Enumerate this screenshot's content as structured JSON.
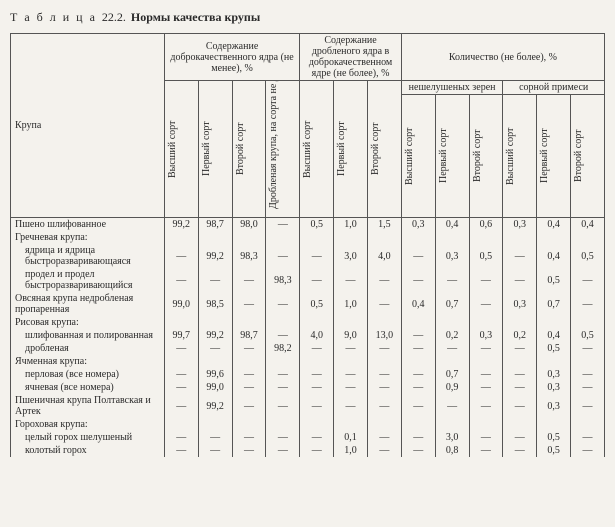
{
  "title_word": "Т а б л и ц а",
  "title_num": "22.2.",
  "title_text": "Нормы качества крупы",
  "headers": {
    "krupa": "Крупа",
    "g1": "Содержание доброкачественного ядра (не менее), %",
    "g2": "Содержание дробленого ядра в доброкачественном ядре (не более), %",
    "g3": "Количество (не более), %",
    "g3a": "нешелушеных зерен",
    "g3b": "сорной примеси",
    "c_high": "Высший сорт",
    "c_first": "Первый сорт",
    "c_second": "Второй сорт",
    "c_drobl": "Дробленая крупа, на сорта не делящаяся"
  },
  "rows": [
    {
      "label": "Пшено шлифованное",
      "indent": 0,
      "v": [
        "99,2",
        "98,7",
        "98,0",
        "—",
        "0,5",
        "1,0",
        "1,5",
        "0,3",
        "0,4",
        "0,6",
        "0,3",
        "0,4",
        "0,4"
      ]
    },
    {
      "label": "Гречневая крупа:",
      "indent": 0,
      "v": [
        "",
        "",
        "",
        "",
        "",
        "",
        "",
        "",
        "",
        "",
        "",
        "",
        ""
      ]
    },
    {
      "label": "ядрица и ядрица быстроразваривающаяся",
      "indent": 1,
      "v": [
        "—",
        "99,2",
        "98,3",
        "—",
        "—",
        "3,0",
        "4,0",
        "—",
        "0,3",
        "0,5",
        "—",
        "0,4",
        "0,5"
      ]
    },
    {
      "label": "продел и продел быстроразваривающийся",
      "indent": 1,
      "v": [
        "—",
        "—",
        "—",
        "98,3",
        "—",
        "—",
        "—",
        "—",
        "—",
        "—",
        "—",
        "0,5",
        "—"
      ]
    },
    {
      "label": "Овсяная крупа недробленая пропаренная",
      "indent": 0,
      "v": [
        "99,0",
        "98,5",
        "—",
        "—",
        "0,5",
        "1,0",
        "—",
        "0,4",
        "0,7",
        "—",
        "0,3",
        "0,7",
        "—"
      ]
    },
    {
      "label": "Рисовая крупа:",
      "indent": 0,
      "v": [
        "",
        "",
        "",
        "",
        "",
        "",
        "",
        "",
        "",
        "",
        "",
        "",
        ""
      ]
    },
    {
      "label": "шлифованная и полированная",
      "indent": 1,
      "v": [
        "99,7",
        "99,2",
        "98,7",
        "—",
        "4,0",
        "9,0",
        "13,0",
        "—",
        "0,2",
        "0,3",
        "0,2",
        "0,4",
        "0,5"
      ]
    },
    {
      "label": "дробленая",
      "indent": 1,
      "v": [
        "—",
        "—",
        "—",
        "98,2",
        "—",
        "—",
        "—",
        "—",
        "—",
        "—",
        "—",
        "0,5",
        "—"
      ]
    },
    {
      "label": "Ячменная крупа:",
      "indent": 0,
      "v": [
        "",
        "",
        "",
        "",
        "",
        "",
        "",
        "",
        "",
        "",
        "",
        "",
        ""
      ]
    },
    {
      "label": "перловая (все номера)",
      "indent": 1,
      "v": [
        "—",
        "99,6",
        "—",
        "—",
        "—",
        "—",
        "—",
        "—",
        "0,7",
        "—",
        "—",
        "0,3",
        "—"
      ]
    },
    {
      "label": "ячневая (все номера)",
      "indent": 1,
      "v": [
        "—",
        "99,0",
        "—",
        "—",
        "—",
        "—",
        "—",
        "—",
        "0,9",
        "—",
        "—",
        "0,3",
        "—"
      ]
    },
    {
      "label": "Пшеничная крупа Полтавская и Артек",
      "indent": 0,
      "v": [
        "—",
        "99,2",
        "—",
        "—",
        "—",
        "—",
        "—",
        "—",
        "—",
        "—",
        "—",
        "0,3",
        "—"
      ]
    },
    {
      "label": "Гороховая крупа:",
      "indent": 0,
      "v": [
        "",
        "",
        "",
        "",
        "",
        "",
        "",
        "",
        "",
        "",
        "",
        "",
        ""
      ]
    },
    {
      "label": "целый горох шелушеный",
      "indent": 1,
      "v": [
        "—",
        "—",
        "—",
        "—",
        "—",
        "0,1",
        "—",
        "—",
        "3,0",
        "—",
        "—",
        "0,5",
        "—"
      ]
    },
    {
      "label": "колотый горох",
      "indent": 1,
      "v": [
        "—",
        "—",
        "—",
        "—",
        "—",
        "1,0",
        "—",
        "—",
        "0,8",
        "—",
        "—",
        "0,5",
        "—"
      ]
    }
  ],
  "colors": {
    "bg": "#f4f2ed",
    "text": "#2a2a2a",
    "border": "#555555"
  }
}
